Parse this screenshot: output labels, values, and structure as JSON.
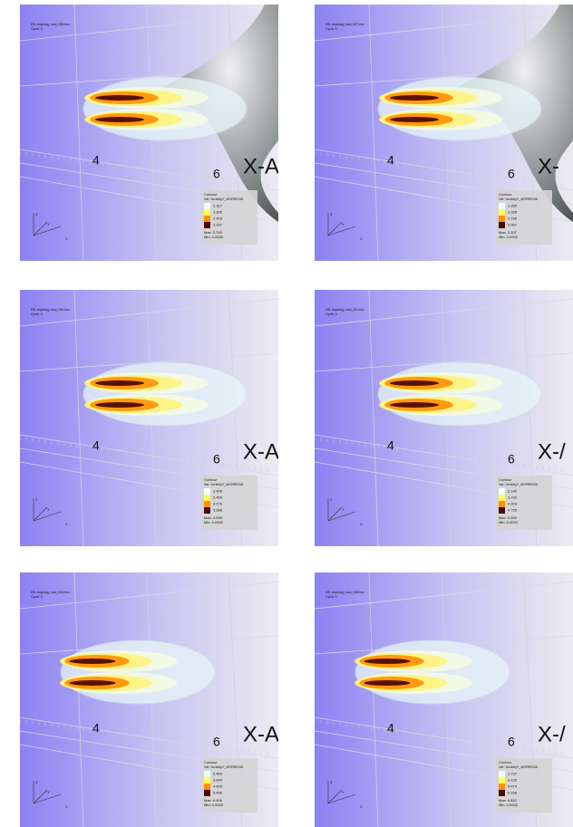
{
  "panels": [
    {
      "db": "DB: tmpdrag_mod_035.bov",
      "cycle": "Cycle: 0",
      "axis_labels": [
        "4",
        "6",
        "X-A"
      ],
      "legend": {
        "title": "Contour",
        "var": "Var: VorticityY_MORRIS3D",
        "levels": [
          "1.317",
          "1.926",
          "2.403",
          "2.207"
        ],
        "max": "Max: 2.745",
        "min": "Min: 0.0000"
      },
      "triad": [
        "Z",
        "Y",
        "X"
      ]
    },
    {
      "db": "DB: tmpdrag_mod_037.bov",
      "cycle": "Cycle: 0",
      "axis_labels": [
        "4",
        "6",
        "X-"
      ],
      "legend": {
        "title": "Contour",
        "var": "Var: VorticityY_MORRIS3D",
        "levels": [
          "1.280",
          "1.928",
          "2.198",
          "2.967"
        ],
        "max": "Max: 3.207",
        "min": "Min: 0.0000"
      },
      "triad": [
        "Z",
        "Y",
        "X"
      ]
    },
    {
      "db": "DB: tmpdrag_mod_039.bov",
      "cycle": "Cycle: 0",
      "axis_labels": [
        "4",
        "6",
        "X-A"
      ],
      "legend": {
        "title": "Contour",
        "var": "Var: VorticityY_MORRIS3D",
        "levels": [
          "1.409",
          "2.459",
          "3.276",
          "3.688"
        ],
        "max": "Max: 4.098",
        "min": "Min: 0.0000"
      },
      "triad": [
        "Z",
        "Y",
        "X"
      ]
    },
    {
      "db": "DB: tmpdrag_mod_041.bov",
      "cycle": "Cycle: 0",
      "axis_labels": [
        "4",
        "6",
        "X-/"
      ],
      "legend": {
        "title": "Contour",
        "var": "Var: VorticityY_MORRIS3D",
        "levels": [
          "2.190",
          "3.150",
          "4.203",
          "4.725"
        ],
        "max": "Max: 5.260",
        "min": "Min: 0.0000"
      },
      "triad": [
        "Z",
        "Y",
        "X"
      ]
    },
    {
      "db": "DB: tmpdrag_mod_043.bov",
      "cycle": "Cycle: 0",
      "axis_labels": [
        "4",
        "6",
        "X-A"
      ],
      "legend": {
        "title": "Contour",
        "var": "Var: VorticityY_MORRIS3D",
        "levels": [
          "2.463",
          "3.694",
          "4.605",
          "5.486"
        ],
        "max": "Max: 6.006",
        "min": "Min: 0.0000"
      },
      "triad": [
        "Z",
        "Y",
        "X"
      ]
    },
    {
      "db": "DB: tmpdrag_mod_045.bov",
      "cycle": "Cycle: 0",
      "axis_labels": [
        "4",
        "6",
        "X-/"
      ],
      "legend": {
        "title": "Contour",
        "var": "Var: VorticityY_MORRIS3D",
        "levels": [
          "2.737",
          "4.105",
          "5.474",
          "6.158"
        ],
        "max": "Max: 6.842",
        "min": "Min: 0.0000"
      },
      "triad": [
        "Z",
        "Y",
        "X"
      ]
    }
  ]
}
